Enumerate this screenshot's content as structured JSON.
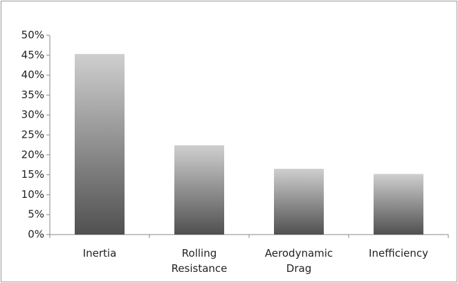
{
  "chart_data": {
    "type": "bar",
    "categories": [
      "Inertia",
      "Rolling Resistance",
      "Aerodynamic Drag",
      "Inefficiency"
    ],
    "values": [
      45.3,
      22.4,
      16.5,
      15.2
    ],
    "ylim": [
      0,
      50
    ],
    "yticks": [
      {
        "value": 0,
        "label": "0%"
      },
      {
        "value": 5,
        "label": "5%"
      },
      {
        "value": 10,
        "label": "10%"
      },
      {
        "value": 15,
        "label": "15%"
      },
      {
        "value": 20,
        "label": "20%"
      },
      {
        "value": 25,
        "label": "25%"
      },
      {
        "value": 30,
        "label": "30%"
      },
      {
        "value": 35,
        "label": "35%"
      },
      {
        "value": 40,
        "label": "40%"
      },
      {
        "value": 45,
        "label": "45%"
      },
      {
        "value": 50,
        "label": "50%"
      }
    ],
    "grid": false
  }
}
